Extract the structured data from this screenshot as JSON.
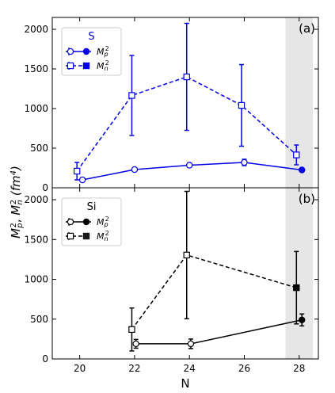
{
  "figure": {
    "ylabel_main": "M",
    "ylabel_p": "p",
    "ylabel_n": "n",
    "ylabel_sq": "2",
    "ylabel_sep": ", ",
    "ylabel_unit_open": " (fm",
    "ylabel_unit_exp": "4",
    "ylabel_unit_close": ")"
  },
  "colors": {
    "S": "#0000e6",
    "Si": "#000000",
    "Si_n_open_marker": "#000000",
    "Si_n_filled_marker": "#1a1a1a",
    "shade": "#e6e6e6"
  },
  "chart_data": [
    {
      "type": "line",
      "panel_label": "(a)",
      "legend_title": "S",
      "legend_position": "top-left",
      "xlim": [
        19,
        28.7
      ],
      "ylim": [
        0,
        2150
      ],
      "x_ticks": [
        20,
        22,
        24,
        26,
        28
      ],
      "y_ticks": [
        0,
        500,
        1000,
        1500,
        2000
      ],
      "shaded_x_range": [
        27.5,
        28.5
      ],
      "series": [
        {
          "name": "Mp2",
          "legend_main": "M",
          "legend_sub": "p",
          "legend_sup": "2",
          "line_style": "solid",
          "marker": "circle",
          "color": "#0000e6",
          "points": [
            {
              "x": 20.1,
              "y": 100,
              "err": 0,
              "filled": false
            },
            {
              "x": 22.0,
              "y": 230,
              "err": 0,
              "filled": false
            },
            {
              "x": 24.0,
              "y": 285,
              "err": 0,
              "filled": false
            },
            {
              "x": 26.0,
              "y": 320,
              "err": 40,
              "filled": false
            },
            {
              "x": 28.1,
              "y": 225,
              "err": 0,
              "filled": true
            }
          ]
        },
        {
          "name": "Mn2",
          "legend_main": "M",
          "legend_sub": "n",
          "legend_sup": "2",
          "line_style": "dashed",
          "marker": "square",
          "color": "#0000e6",
          "points": [
            {
              "x": 19.9,
              "y": 210,
              "err": 110,
              "filled": false
            },
            {
              "x": 21.9,
              "y": 1165,
              "err": 505,
              "filled": false
            },
            {
              "x": 23.9,
              "y": 1400,
              "err": 675,
              "filled": false
            },
            {
              "x": 25.9,
              "y": 1040,
              "err": 515,
              "filled": false
            },
            {
              "x": 27.9,
              "y": 415,
              "err": 125,
              "filled": false
            }
          ]
        }
      ]
    },
    {
      "type": "line",
      "panel_label": "(b)",
      "legend_title": "Si",
      "legend_position": "top-left",
      "xlim": [
        19,
        28.7
      ],
      "ylim": [
        0,
        2150
      ],
      "x_ticks": [
        20,
        22,
        24,
        26,
        28
      ],
      "y_ticks": [
        0,
        500,
        1000,
        1500,
        2000
      ],
      "shaded_x_range": [
        27.5,
        28.5
      ],
      "xlabel": "N",
      "series": [
        {
          "name": "Mp2",
          "legend_main": "M",
          "legend_sub": "p",
          "legend_sup": "2",
          "line_style": "solid",
          "marker": "circle",
          "color": "#000000",
          "points": [
            {
              "x": 22.05,
              "y": 190,
              "err": 55,
              "filled": false
            },
            {
              "x": 24.05,
              "y": 190,
              "err": 60,
              "filled": false
            },
            {
              "x": 28.1,
              "y": 490,
              "err": 75,
              "filled": true
            }
          ]
        },
        {
          "name": "Mn2",
          "legend_main": "M",
          "legend_sub": "n",
          "legend_sup": "2",
          "line_style": "dashed",
          "marker": "square",
          "color": "#000000",
          "points": [
            {
              "x": 21.9,
              "y": 370,
              "err": 270,
              "filled": false
            },
            {
              "x": 23.9,
              "y": 1305,
              "err": 800,
              "filled": false
            },
            {
              "x": 27.9,
              "y": 895,
              "err": 455,
              "filled": true
            }
          ]
        }
      ]
    }
  ]
}
